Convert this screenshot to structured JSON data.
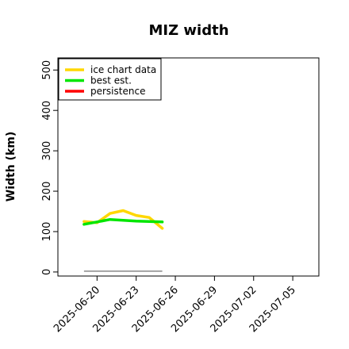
{
  "chart_data": {
    "type": "line",
    "title": "MIZ width",
    "xlabel": "",
    "ylabel": "Width (km)",
    "x_ticks": [
      "2025-06-20",
      "2025-06-23",
      "2025-06-26",
      "2025-06-29",
      "2025-07-02",
      "2025-07-05"
    ],
    "xlim": [
      "2025-06-17",
      "2025-07-07"
    ],
    "ylim": [
      -10,
      530
    ],
    "y_ticks": [
      0,
      100,
      200,
      300,
      400,
      500
    ],
    "grid": false,
    "legend_position": "top-left",
    "series": [
      {
        "name": "ice chart data",
        "color": "#FFD700",
        "x": [
          "2025-06-19",
          "2025-06-20",
          "2025-06-21",
          "2025-06-22",
          "2025-06-23",
          "2025-06-24",
          "2025-06-25"
        ],
        "y": [
          125,
          122,
          145,
          152,
          140,
          135,
          108
        ]
      },
      {
        "name": "best est.",
        "color": "#00E600",
        "x": [
          "2025-06-19",
          "2025-06-20",
          "2025-06-21",
          "2025-06-22",
          "2025-06-23",
          "2025-06-24",
          "2025-06-25"
        ],
        "y": [
          118,
          124,
          130,
          128,
          126,
          125,
          124
        ]
      },
      {
        "name": "persistence",
        "color": "#FF0000",
        "x": [],
        "y": []
      }
    ],
    "baseline": {
      "color": "#888888",
      "x": [
        "2025-06-19",
        "2025-06-25"
      ],
      "y": [
        2,
        2
      ]
    }
  }
}
